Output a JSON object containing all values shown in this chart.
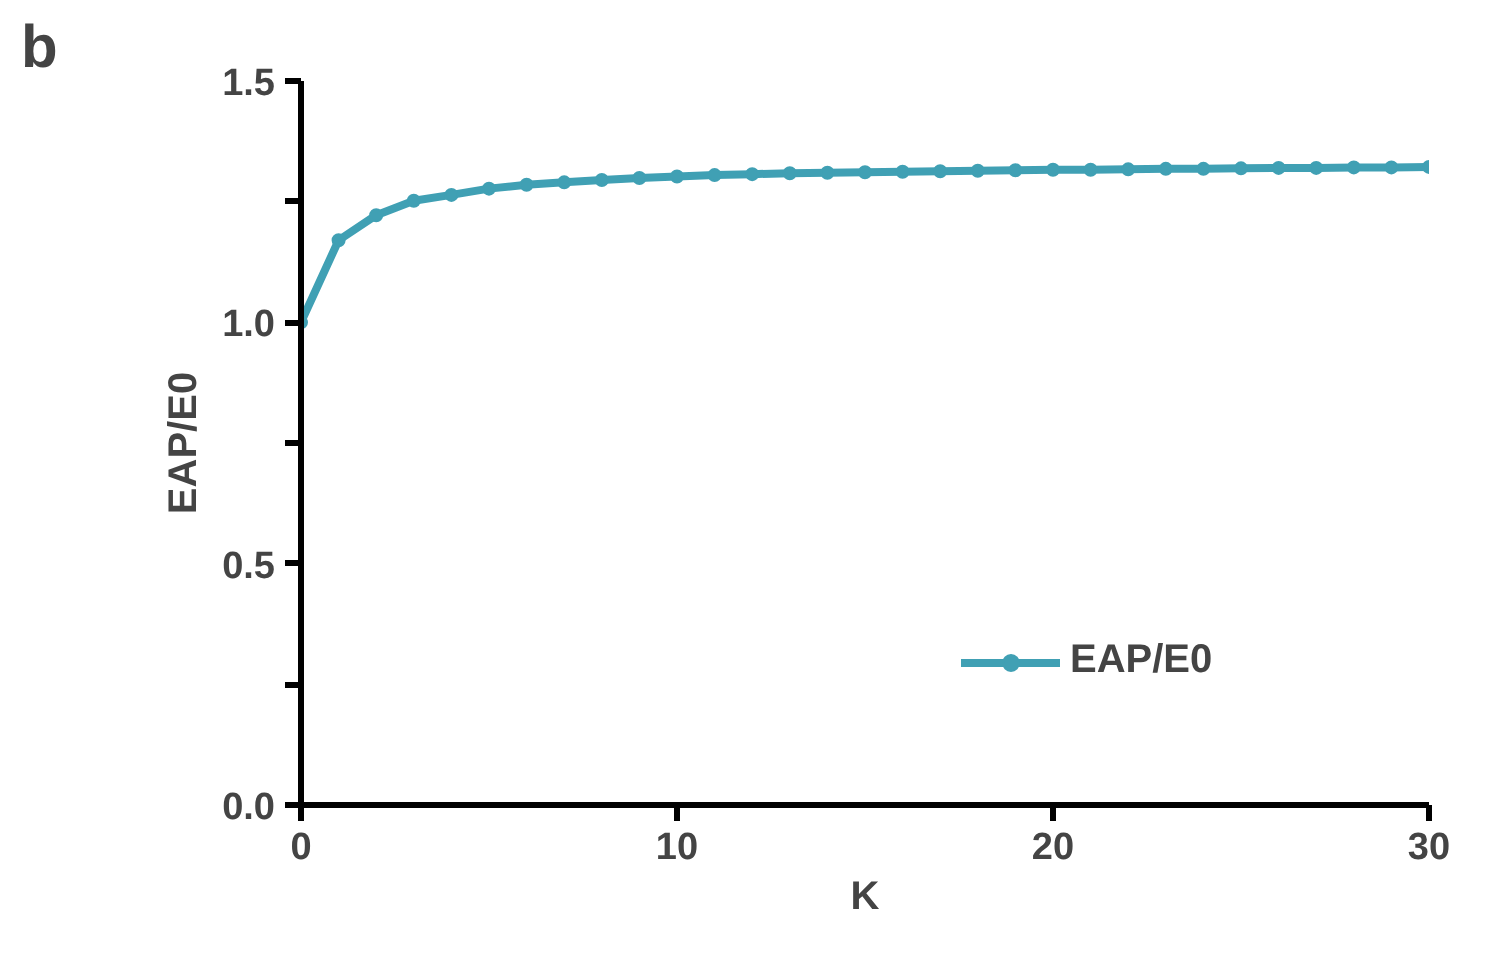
{
  "chart_data": {
    "type": "line",
    "title": "b",
    "xlabel": "K",
    "ylabel": "EAP/E0",
    "x": [
      0,
      1,
      2,
      3,
      4,
      5,
      6,
      7,
      8,
      9,
      10,
      11,
      12,
      13,
      14,
      15,
      16,
      17,
      18,
      19,
      20,
      21,
      22,
      23,
      24,
      25,
      26,
      27,
      28,
      29,
      30
    ],
    "series": [
      {
        "name": "EAP/E0",
        "color": "#40a0b4",
        "values": [
          1.0,
          1.17,
          1.222,
          1.252,
          1.264,
          1.277,
          1.285,
          1.29,
          1.295,
          1.299,
          1.302,
          1.305,
          1.307,
          1.309,
          1.31,
          1.311,
          1.312,
          1.313,
          1.314,
          1.315,
          1.316,
          1.316,
          1.317,
          1.318,
          1.318,
          1.319,
          1.32,
          1.32,
          1.321,
          1.321,
          1.322
        ]
      }
    ],
    "xlim": [
      0,
      30
    ],
    "ylim": [
      0,
      1.5
    ],
    "xticks": [
      0,
      10,
      20,
      30
    ],
    "yticks": [
      {
        "value": 0,
        "label": "0.0"
      },
      {
        "value": 0.25,
        "label": null
      },
      {
        "value": 0.5,
        "label": "0.5"
      },
      {
        "value": 0.75,
        "label": null
      },
      {
        "value": 1.0,
        "label": "1.0"
      },
      {
        "value": 1.25,
        "label": null
      },
      {
        "value": 1.5,
        "label": "1.5"
      }
    ],
    "marker": "circle",
    "line_style": "solid",
    "legend": "right",
    "grid": false
  }
}
